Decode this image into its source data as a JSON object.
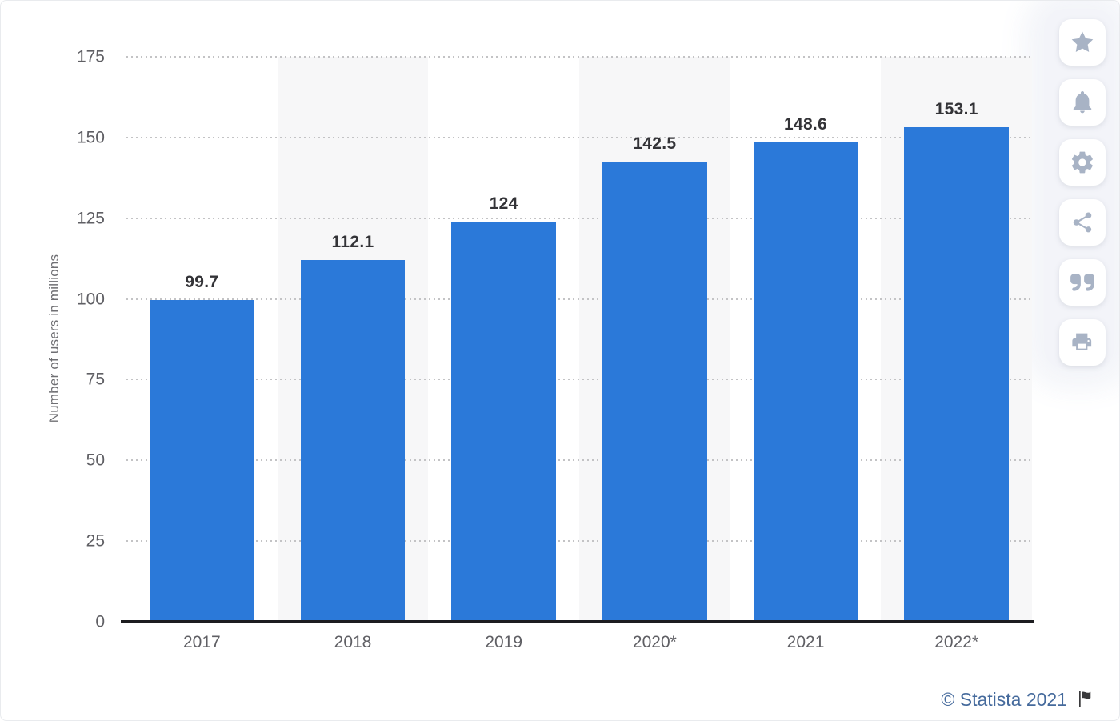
{
  "chart_data": {
    "type": "bar",
    "categories": [
      "2017",
      "2018",
      "2019",
      "2020*",
      "2021",
      "2022*"
    ],
    "values": [
      99.7,
      112.1,
      124,
      142.5,
      148.6,
      153.1
    ],
    "value_labels": [
      "99.7",
      "112.1",
      "124",
      "142.5",
      "148.6",
      "153.1"
    ],
    "title": "",
    "xlabel": "",
    "ylabel": "Number of users in millions",
    "ylim": [
      0,
      175
    ],
    "yticks": [
      0,
      25,
      50,
      75,
      100,
      125,
      150,
      175
    ],
    "grid": "horizontal dotted",
    "legend": "none",
    "bar_color": "#2b79d9",
    "striped_columns": [
      1,
      3,
      5
    ],
    "stripe_color": "#f7f7f8",
    "axis_line_color": "#1d1d20"
  },
  "sidebar": {
    "icon_color": "#a8b3c5",
    "buttons": [
      {
        "name": "favorite",
        "icon": "star-icon"
      },
      {
        "name": "notifications",
        "icon": "bell-icon"
      },
      {
        "name": "settings",
        "icon": "gear-icon"
      },
      {
        "name": "share",
        "icon": "share-icon"
      },
      {
        "name": "cite",
        "icon": "quote-icon"
      },
      {
        "name": "print",
        "icon": "printer-icon"
      }
    ]
  },
  "footer": {
    "credit": "© Statista 2021",
    "credit_color": "#456a9c",
    "flag_icon": "flag-icon",
    "flag_color": "#3a3a3c"
  }
}
